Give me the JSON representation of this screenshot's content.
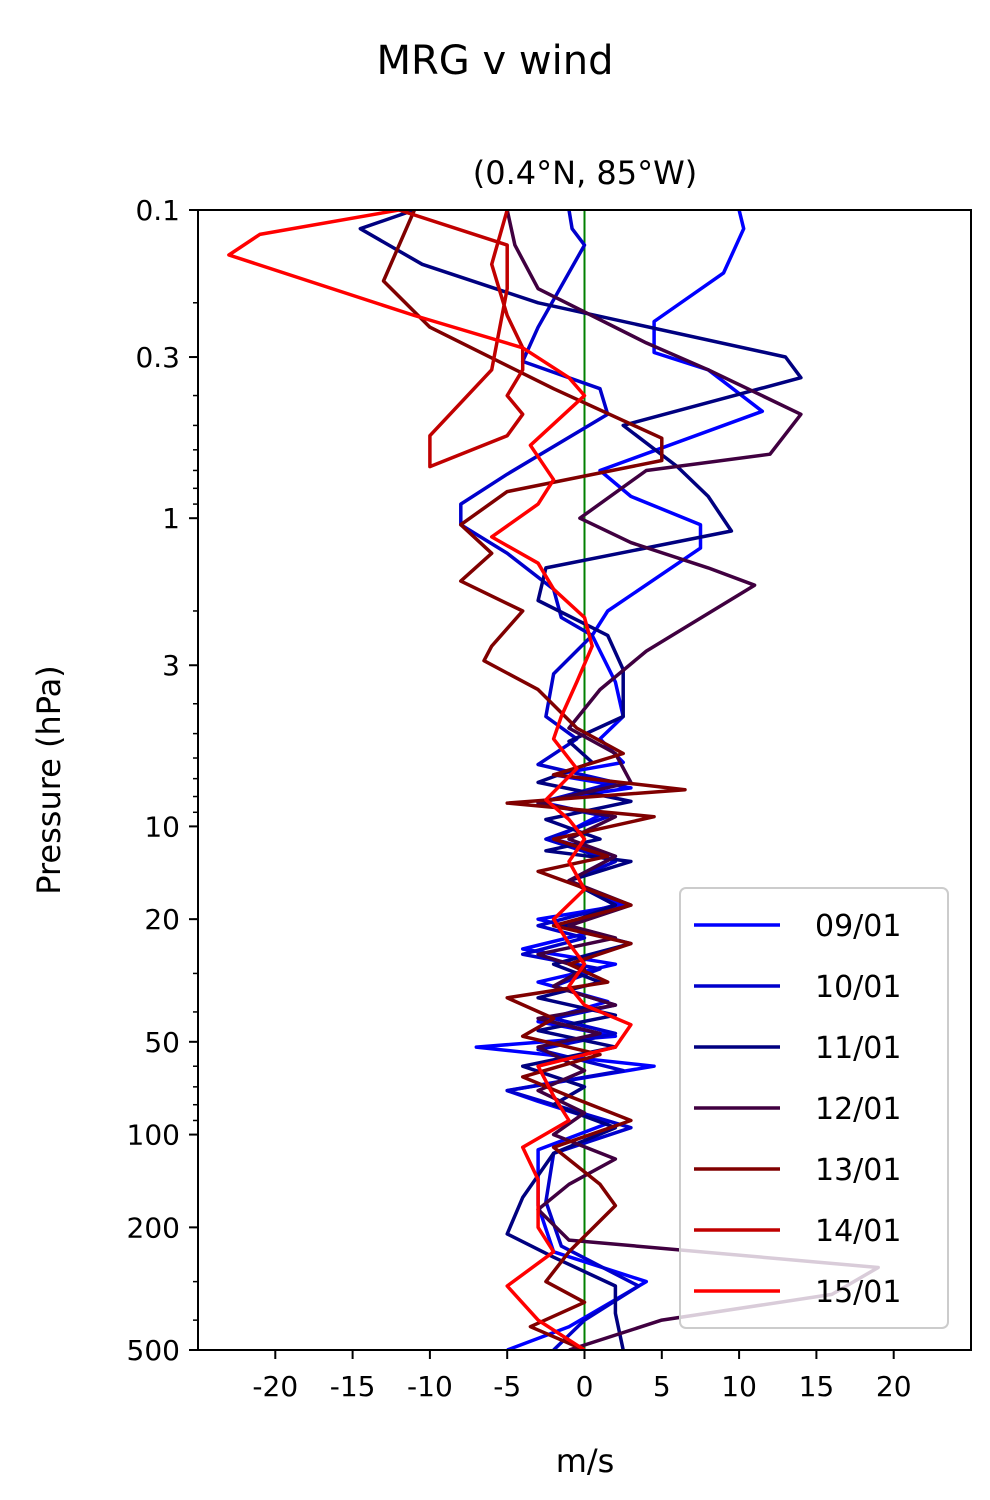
{
  "figure": {
    "suptitle": "MRG v wind",
    "subtitle": "(0.4°N, 85°W)"
  },
  "chart_data": {
    "type": "line",
    "title": "MRG v wind",
    "subtitle": "(0.4°N, 85°W)",
    "xlabel": "m/s",
    "ylabel": "Pressure (hPa)",
    "xlim": [
      -25,
      25
    ],
    "ylim": [
      500,
      0.1
    ],
    "y_scale": "log",
    "y_inverted": true,
    "x_ticks": [
      -20,
      -15,
      -10,
      -5,
      0,
      5,
      10,
      15,
      20
    ],
    "x_tick_labels": [
      "-20",
      "-15",
      "-10",
      "-5",
      "0",
      "5",
      "10",
      "15",
      "20"
    ],
    "y_ticks": [
      0.1,
      0.3,
      1,
      3,
      10,
      20,
      50,
      100,
      200,
      500
    ],
    "y_tick_labels": [
      "0.1",
      "0.3",
      "1",
      "3",
      "10",
      "20",
      "50",
      "100",
      "200",
      "500"
    ],
    "reference_line": {
      "x": 0,
      "color": "#008000"
    },
    "grid": false,
    "legend_position": "lower right",
    "series": [
      {
        "name": "09/01",
        "color": "#0000ff",
        "points": [
          [
            10,
            0.1
          ],
          [
            10.3,
            0.115
          ],
          [
            9,
            0.16
          ],
          [
            4.5,
            0.23
          ],
          [
            4.5,
            0.29
          ],
          [
            8,
            0.33
          ],
          [
            11.5,
            0.45
          ],
          [
            1,
            0.7
          ],
          [
            3,
            0.85
          ],
          [
            7.5,
            1.05
          ],
          [
            7.5,
            1.25
          ],
          [
            1.5,
            2.0
          ],
          [
            0.5,
            2.4
          ],
          [
            2,
            3.4
          ],
          [
            2.5,
            4.4
          ],
          [
            1,
            5.2
          ],
          [
            2.5,
            6.2
          ],
          [
            -2,
            6.8
          ],
          [
            3,
            7.5
          ],
          [
            -3,
            8.3
          ],
          [
            1,
            9.2
          ],
          [
            -2,
            11
          ],
          [
            2,
            12.5
          ],
          [
            -1,
            15
          ],
          [
            2.5,
            18
          ],
          [
            -3,
            20
          ],
          [
            0.5,
            22
          ],
          [
            -4,
            25
          ],
          [
            2,
            28
          ],
          [
            -3,
            32
          ],
          [
            1.5,
            37
          ],
          [
            -3,
            43
          ],
          [
            2,
            48
          ],
          [
            -7,
            52
          ],
          [
            4.5,
            60
          ],
          [
            -5,
            72
          ],
          [
            -3,
            78
          ],
          [
            1.5,
            92
          ],
          [
            -3,
            112
          ],
          [
            -3,
            170
          ],
          [
            -2,
            240
          ],
          [
            4,
            300
          ],
          [
            -1,
            420
          ],
          [
            -5,
            500
          ]
        ]
      },
      {
        "name": "10/01",
        "color": "#0000cc",
        "points": [
          [
            -1,
            0.1
          ],
          [
            -0.8,
            0.115
          ],
          [
            0,
            0.13
          ],
          [
            -3,
            0.24
          ],
          [
            -4,
            0.31
          ],
          [
            1,
            0.38
          ],
          [
            1.5,
            0.46
          ],
          [
            -5,
            0.72
          ],
          [
            -8,
            0.9
          ],
          [
            -8,
            1.05
          ],
          [
            -5,
            1.3
          ],
          [
            -2,
            1.7
          ],
          [
            -1.5,
            2.1
          ],
          [
            0.5,
            2.4
          ],
          [
            -2,
            3.2
          ],
          [
            -2.5,
            4.4
          ],
          [
            -0.5,
            5.2
          ],
          [
            -3,
            6.3
          ],
          [
            2,
            7.2
          ],
          [
            -3,
            8.4
          ],
          [
            1.5,
            9.3
          ],
          [
            -2.5,
            11
          ],
          [
            2,
            13
          ],
          [
            -1,
            15
          ],
          [
            2,
            18
          ],
          [
            -3,
            21
          ],
          [
            0,
            23
          ],
          [
            -4,
            26
          ],
          [
            1,
            29
          ],
          [
            -2,
            33
          ],
          [
            2,
            38
          ],
          [
            -2,
            42
          ],
          [
            2,
            47
          ],
          [
            -3,
            53
          ],
          [
            2.5,
            62
          ],
          [
            -5,
            72
          ],
          [
            -2,
            80
          ],
          [
            3,
            95
          ],
          [
            -2,
            115
          ],
          [
            -2.5,
            165
          ],
          [
            -1.5,
            230
          ],
          [
            3.5,
            310
          ],
          [
            0,
            400
          ],
          [
            -2,
            500
          ]
        ]
      },
      {
        "name": "11/01",
        "color": "#000080",
        "points": [
          [
            -11,
            0.1
          ],
          [
            -14.5,
            0.115
          ],
          [
            -10.5,
            0.15
          ],
          [
            -3,
            0.2
          ],
          [
            13,
            0.3
          ],
          [
            14,
            0.35
          ],
          [
            2.5,
            0.5
          ],
          [
            6,
            0.68
          ],
          [
            8,
            0.85
          ],
          [
            9.5,
            1.1
          ],
          [
            -2.5,
            1.45
          ],
          [
            -3,
            1.85
          ],
          [
            1.5,
            2.4
          ],
          [
            2.5,
            3.1
          ],
          [
            2.5,
            4.4
          ],
          [
            -1,
            5.3
          ],
          [
            0.5,
            6.2
          ],
          [
            -3,
            7.2
          ],
          [
            3,
            8.3
          ],
          [
            -2.5,
            9.5
          ],
          [
            1,
            11
          ],
          [
            -2.5,
            12
          ],
          [
            3,
            13
          ],
          [
            -1,
            15
          ],
          [
            2,
            18
          ],
          [
            -1.5,
            21
          ],
          [
            3,
            24
          ],
          [
            -2,
            28
          ],
          [
            1,
            32
          ],
          [
            -3,
            36
          ],
          [
            2,
            41
          ],
          [
            -3,
            46
          ],
          [
            2,
            52
          ],
          [
            -4,
            60
          ],
          [
            0,
            70
          ],
          [
            -2,
            80
          ],
          [
            2,
            95
          ],
          [
            -2,
            115
          ],
          [
            -4,
            160
          ],
          [
            -5,
            210
          ],
          [
            -2,
            250
          ],
          [
            2,
            310
          ],
          [
            2,
            380
          ],
          [
            2.5,
            500
          ]
        ]
      },
      {
        "name": "12/01",
        "color": "#400040",
        "points": [
          [
            -5,
            0.1
          ],
          [
            -4.5,
            0.13
          ],
          [
            -3,
            0.18
          ],
          [
            4,
            0.27
          ],
          [
            8,
            0.33
          ],
          [
            14,
            0.46
          ],
          [
            12,
            0.62
          ],
          [
            4,
            0.7
          ],
          [
            -0.3,
            1.0
          ],
          [
            3,
            1.2
          ],
          [
            8,
            1.45
          ],
          [
            11,
            1.65
          ],
          [
            4,
            2.7
          ],
          [
            1,
            3.6
          ],
          [
            -1,
            4.8
          ],
          [
            2,
            5.8
          ],
          [
            3,
            7.2
          ],
          [
            -3,
            8.4
          ],
          [
            2,
            9.3
          ],
          [
            -1,
            11
          ],
          [
            2,
            12.5
          ],
          [
            -1,
            15
          ],
          [
            3,
            18
          ],
          [
            -1,
            21
          ],
          [
            2,
            23
          ],
          [
            -3,
            26
          ],
          [
            0,
            29
          ],
          [
            -2,
            33
          ],
          [
            2,
            38
          ],
          [
            -3,
            42
          ],
          [
            1,
            47
          ],
          [
            -3,
            52
          ],
          [
            0,
            62
          ],
          [
            -3,
            72
          ],
          [
            0,
            85
          ],
          [
            -2,
            100
          ],
          [
            2,
            120
          ],
          [
            -1,
            145
          ],
          [
            -3,
            175
          ],
          [
            -1,
            220
          ],
          [
            19,
            270
          ],
          [
            16,
            330
          ],
          [
            5,
            400
          ],
          [
            -1,
            500
          ]
        ]
      },
      {
        "name": "13/01",
        "color": "#800000",
        "points": [
          [
            -11,
            0.1
          ],
          [
            -13,
            0.17
          ],
          [
            -10,
            0.24
          ],
          [
            -2,
            0.38
          ],
          [
            5,
            0.55
          ],
          [
            5,
            0.65
          ],
          [
            -5,
            0.82
          ],
          [
            -8,
            1.05
          ],
          [
            -6,
            1.3
          ],
          [
            -8,
            1.6
          ],
          [
            -4,
            2.0
          ],
          [
            -6,
            2.6
          ],
          [
            -6.5,
            2.9
          ],
          [
            -3,
            3.6
          ],
          [
            -0.5,
            4.8
          ],
          [
            2.5,
            5.8
          ],
          [
            -2,
            6.8
          ],
          [
            6.5,
            7.6
          ],
          [
            -5,
            8.4
          ],
          [
            4.5,
            9.3
          ],
          [
            -2,
            11
          ],
          [
            1.5,
            12.5
          ],
          [
            -3,
            14
          ],
          [
            3,
            18
          ],
          [
            -2,
            21
          ],
          [
            3,
            24
          ],
          [
            -1,
            28
          ],
          [
            1.5,
            32
          ],
          [
            -5,
            36
          ],
          [
            -2,
            42
          ],
          [
            -4,
            48
          ],
          [
            1,
            55
          ],
          [
            -4,
            65
          ],
          [
            -1,
            75
          ],
          [
            3,
            90
          ],
          [
            -2,
            110
          ],
          [
            1,
            145
          ],
          [
            2,
            170
          ],
          [
            -1,
            240
          ],
          [
            -2.5,
            300
          ],
          [
            0,
            350
          ],
          [
            -3.5,
            420
          ],
          [
            0,
            500
          ]
        ]
      },
      {
        "name": "14/01",
        "color": "#c00000",
        "points": [
          [
            -12,
            0.1
          ],
          [
            -5,
            0.13
          ],
          [
            -5,
            0.18
          ],
          [
            -6,
            0.33
          ],
          [
            -10,
            0.54
          ],
          [
            -10,
            0.68
          ],
          [
            -5,
            0.54
          ],
          [
            -4,
            0.46
          ],
          [
            -5,
            0.4
          ],
          [
            -4,
            0.33
          ],
          [
            -4,
            0.28
          ],
          [
            -5,
            0.22
          ],
          [
            -6,
            0.15
          ],
          [
            -5,
            0.1
          ]
        ]
      },
      {
        "name": "15/01",
        "color": "#ff0000",
        "points": [
          [
            -12,
            0.1
          ],
          [
            -21,
            0.12
          ],
          [
            -23,
            0.14
          ],
          [
            -11,
            0.22
          ],
          [
            -4,
            0.28
          ],
          [
            -1,
            0.35
          ],
          [
            0,
            0.4
          ],
          [
            -3.5,
            0.58
          ],
          [
            -2,
            0.75
          ],
          [
            -3,
            0.9
          ],
          [
            -6,
            1.15
          ],
          [
            -3,
            1.4
          ],
          [
            -2,
            1.7
          ],
          [
            0,
            2.1
          ],
          [
            0.5,
            2.6
          ],
          [
            -0.5,
            3.4
          ],
          [
            -1.5,
            4.4
          ],
          [
            -2,
            5.2
          ],
          [
            -0.5,
            6.5
          ],
          [
            -2.5,
            8.2
          ],
          [
            -1,
            9.5
          ],
          [
            0,
            11
          ],
          [
            -1,
            13
          ],
          [
            0,
            16
          ],
          [
            -2,
            20
          ],
          [
            -1,
            24
          ],
          [
            0,
            28
          ],
          [
            -1,
            33
          ],
          [
            0,
            38
          ],
          [
            3,
            44
          ],
          [
            2,
            52
          ],
          [
            -3,
            60
          ],
          [
            -2,
            75
          ],
          [
            -1,
            90
          ],
          [
            -4,
            110
          ],
          [
            -3,
            140
          ],
          [
            -3,
            200
          ],
          [
            -2,
            240
          ],
          [
            -5,
            310
          ],
          [
            -3,
            400
          ],
          [
            0,
            500
          ]
        ]
      }
    ]
  }
}
